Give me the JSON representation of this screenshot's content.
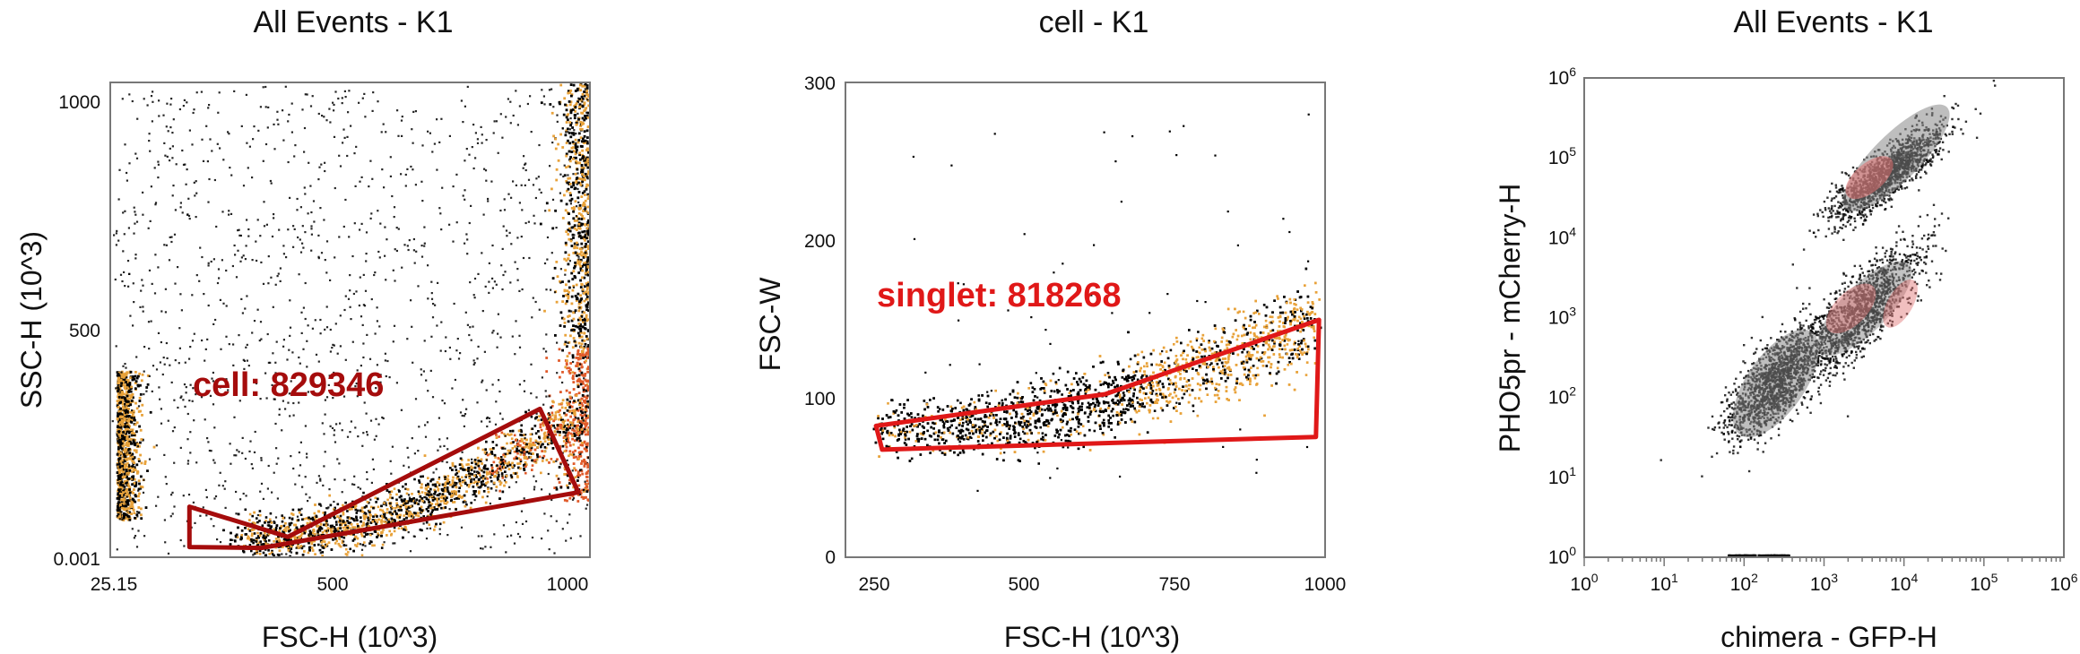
{
  "chart_data": [
    {
      "type": "scatter",
      "title": "All Events - K1",
      "xlabel": "FSC-H (10^3)",
      "ylabel": "SSC-H (10^3)",
      "xlim": [
        25.15,
        1024
      ],
      "ylim": [
        0.001,
        1024
      ],
      "xticks": [
        "25.15",
        "500",
        "1000"
      ],
      "yticks": [
        "0.001",
        "500",
        "1000"
      ],
      "density_colors": [
        "#000000",
        "#e8a23a",
        "#e05a2a"
      ],
      "gate": {
        "name": "cell",
        "count": 829346,
        "label": "cell: 829346",
        "color": "#a50c0c",
        "vertices": [
          [
            190,
            109
          ],
          [
            395,
            44
          ],
          [
            920,
            320
          ],
          [
            1000,
            140
          ],
          [
            340,
            20
          ],
          [
            190,
            22
          ]
        ]
      }
    },
    {
      "type": "scatter",
      "title": "cell - K1",
      "xlabel": "FSC-H (10^3)",
      "ylabel": "FSC-W",
      "xlim": [
        215,
        1000
      ],
      "ylim": [
        0,
        300
      ],
      "xticks": [
        "250",
        "500",
        "750",
        "1000"
      ],
      "yticks": [
        "0",
        "100",
        "200",
        "300"
      ],
      "density_colors": [
        "#000000",
        "#e8a23a"
      ],
      "gate": {
        "name": "singlet",
        "count": 818268,
        "label": "singlet: 818268",
        "color": "#e01818",
        "vertices": [
          [
            265,
            83
          ],
          [
            640,
            103
          ],
          [
            990,
            150
          ],
          [
            985,
            76
          ],
          [
            275,
            68
          ]
        ]
      }
    },
    {
      "type": "scatter",
      "title": "All Events - K1",
      "xlabel": "chimera - GFP-H",
      "ylabel": "PHO5pr - mCherry-H",
      "xscale": "log",
      "yscale": "log",
      "xlim": [
        1,
        1000000
      ],
      "ylim": [
        1,
        1000000
      ],
      "xticks": [
        "10",
        "10",
        "10",
        "10",
        "10",
        "10",
        "10"
      ],
      "xtick_exponents": [
        "0",
        "1",
        "2",
        "3",
        "4",
        "5",
        "6"
      ],
      "yticks": [
        "10",
        "10",
        "10",
        "10",
        "10",
        "10",
        "10"
      ],
      "ytick_exponents": [
        "0",
        "1",
        "2",
        "3",
        "4",
        "5",
        "6"
      ],
      "density_colors": [
        "#000000",
        "#888888",
        "#e07070"
      ]
    }
  ]
}
